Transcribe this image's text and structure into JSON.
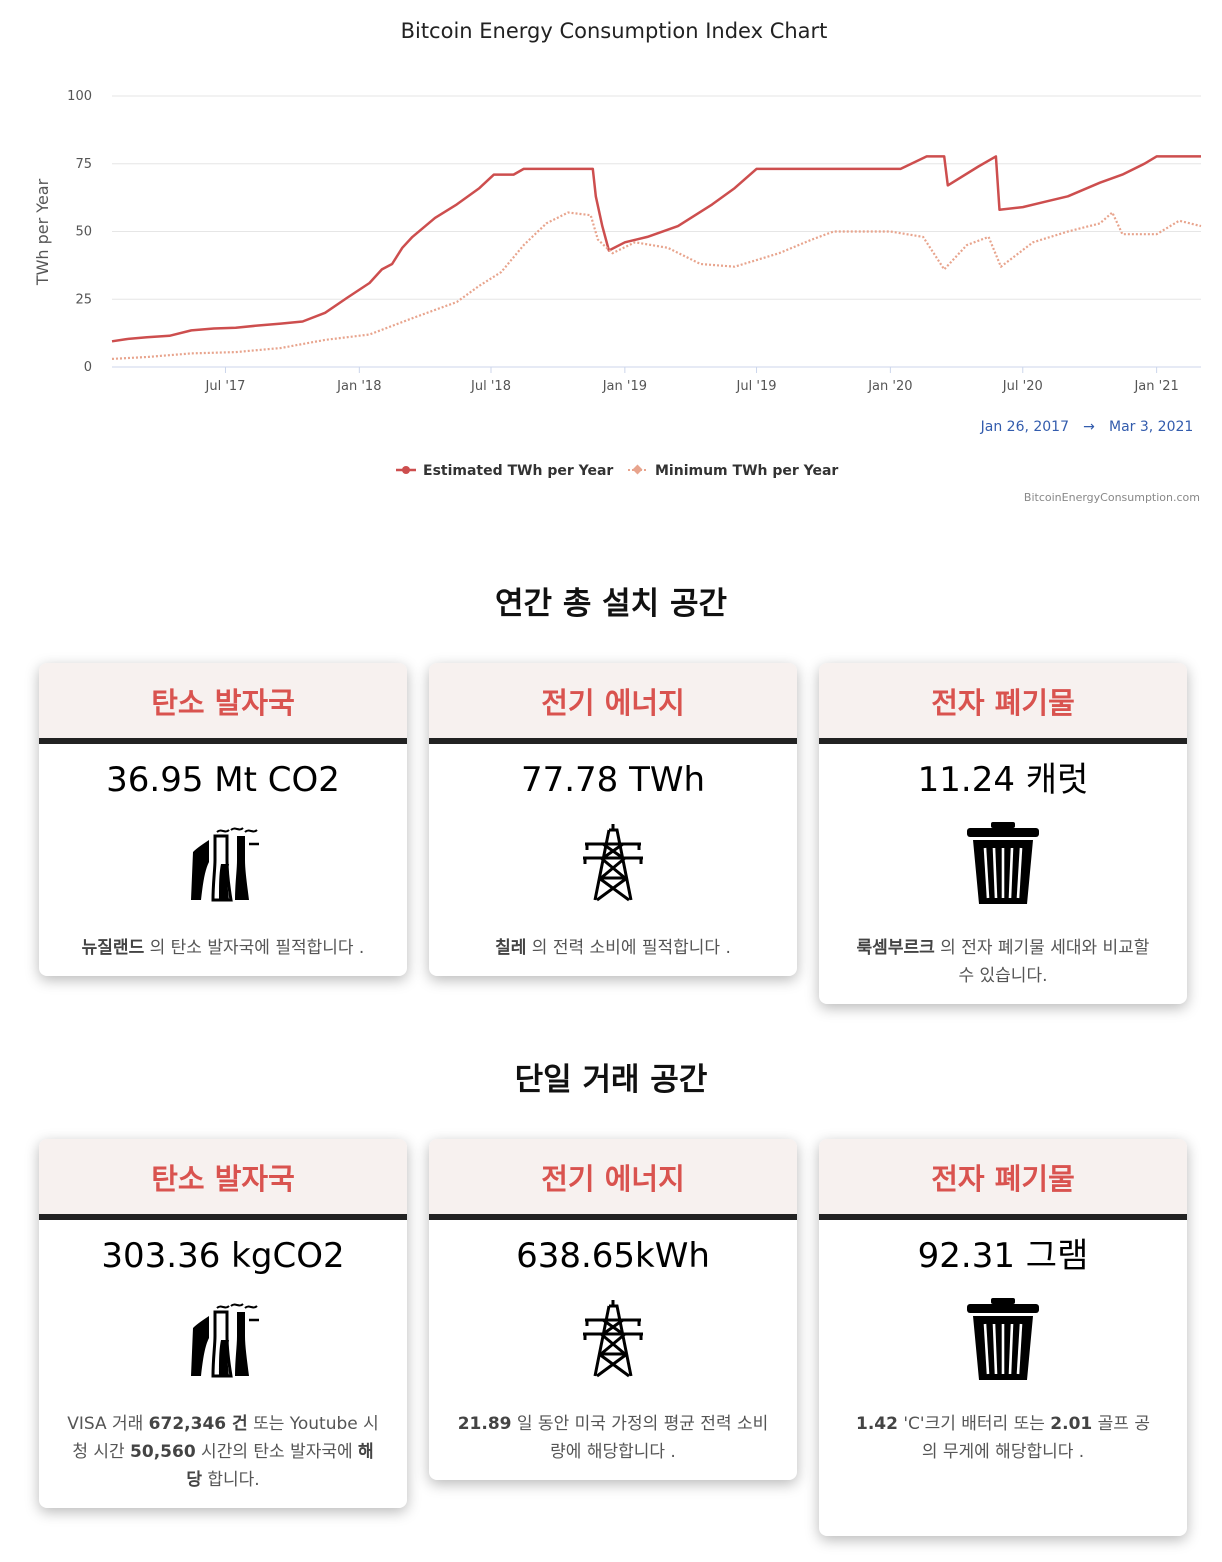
{
  "chart": {
    "title": "Bitcoin Energy Consumption Index Chart",
    "y_axis_title": "TWh per Year",
    "y_ticks": [
      "0",
      "25",
      "50",
      "75",
      "100"
    ],
    "x_ticks": [
      "Jul '17",
      "Jan '18",
      "Jul '18",
      "Jan '19",
      "Jul '19",
      "Jan '20",
      "Jul '20",
      "Jan '21"
    ],
    "range_from": "Jan 26, 2017",
    "range_arrow": "→",
    "range_to": "Mar 3, 2021",
    "legend": [
      "Estimated TWh per Year",
      "Minimum TWh per Year"
    ],
    "credit": "BitcoinEnergyConsumption.com",
    "colors": {
      "estimated": "#cd4e4e",
      "minimum": "#e8a48d",
      "grid": "#e6e6e6",
      "axis": "#ccd6eb"
    }
  },
  "chart_data": {
    "type": "line",
    "title": "Bitcoin Energy Consumption Index Chart",
    "xlabel": "",
    "ylabel": "TWh per Year",
    "ylim": [
      0,
      100
    ],
    "x_range": [
      "2017-01-26",
      "2021-03-03"
    ],
    "legend_position": "bottom",
    "grid": true,
    "series": [
      {
        "name": "Estimated TWh per Year",
        "points": [
          [
            "2017-01-26",
            9.5
          ],
          [
            "2017-02-15",
            10.3
          ],
          [
            "2017-03-15",
            11
          ],
          [
            "2017-04-15",
            11.5
          ],
          [
            "2017-05-15",
            13.5
          ],
          [
            "2017-06-15",
            14.2
          ],
          [
            "2017-07-15",
            14.5
          ],
          [
            "2017-08-15",
            15.3
          ],
          [
            "2017-09-15",
            16
          ],
          [
            "2017-10-15",
            16.8
          ],
          [
            "2017-11-15",
            20
          ],
          [
            "2017-12-15",
            25.5
          ],
          [
            "2018-01-15",
            31
          ],
          [
            "2018-02-01",
            36
          ],
          [
            "2018-02-15",
            38
          ],
          [
            "2018-03-01",
            44
          ],
          [
            "2018-03-15",
            48
          ],
          [
            "2018-04-15",
            55
          ],
          [
            "2018-05-15",
            60
          ],
          [
            "2018-06-15",
            66
          ],
          [
            "2018-07-05",
            71
          ],
          [
            "2018-08-01",
            71
          ],
          [
            "2018-08-15",
            73.1
          ],
          [
            "2018-11-18",
            73.1
          ],
          [
            "2018-11-22",
            63
          ],
          [
            "2018-12-01",
            52
          ],
          [
            "2018-12-10",
            43
          ],
          [
            "2019-01-01",
            46
          ],
          [
            "2019-02-01",
            48
          ],
          [
            "2019-03-15",
            52
          ],
          [
            "2019-05-01",
            60
          ],
          [
            "2019-06-01",
            66
          ],
          [
            "2019-07-01",
            73.1
          ],
          [
            "2020-01-15",
            73.1
          ],
          [
            "2020-02-20",
            77.7
          ],
          [
            "2020-03-15",
            77.7
          ],
          [
            "2020-03-20",
            67
          ],
          [
            "2020-05-01",
            74
          ],
          [
            "2020-05-25",
            77.7
          ],
          [
            "2020-05-30",
            58
          ],
          [
            "2020-07-01",
            59
          ],
          [
            "2020-08-01",
            61
          ],
          [
            "2020-09-01",
            63
          ],
          [
            "2020-10-15",
            68
          ],
          [
            "2020-11-15",
            71
          ],
          [
            "2020-12-15",
            75
          ],
          [
            "2021-01-01",
            77.7
          ],
          [
            "2021-03-03",
            77.7
          ]
        ]
      },
      {
        "name": "Minimum TWh per Year",
        "points": [
          [
            "2017-01-26",
            3
          ],
          [
            "2017-03-15",
            3.7
          ],
          [
            "2017-05-15",
            5
          ],
          [
            "2017-07-15",
            5.5
          ],
          [
            "2017-09-15",
            7
          ],
          [
            "2017-11-15",
            10
          ],
          [
            "2018-01-15",
            12
          ],
          [
            "2018-03-15",
            18
          ],
          [
            "2018-05-15",
            24
          ],
          [
            "2018-06-15",
            30
          ],
          [
            "2018-07-15",
            35
          ],
          [
            "2018-08-15",
            45
          ],
          [
            "2018-09-15",
            53
          ],
          [
            "2018-10-15",
            57
          ],
          [
            "2018-11-15",
            56
          ],
          [
            "2018-11-25",
            47
          ],
          [
            "2018-12-15",
            42
          ],
          [
            "2019-01-15",
            46
          ],
          [
            "2019-03-01",
            44
          ],
          [
            "2019-04-15",
            38
          ],
          [
            "2019-06-01",
            37
          ],
          [
            "2019-08-01",
            42
          ],
          [
            "2019-09-15",
            47
          ],
          [
            "2019-10-15",
            50
          ],
          [
            "2019-11-15",
            50
          ],
          [
            "2020-01-01",
            50
          ],
          [
            "2020-02-15",
            48
          ],
          [
            "2020-03-15",
            36
          ],
          [
            "2020-04-15",
            45
          ],
          [
            "2020-05-15",
            48
          ],
          [
            "2020-06-01",
            37
          ],
          [
            "2020-07-15",
            46
          ],
          [
            "2020-09-01",
            50
          ],
          [
            "2020-10-15",
            53
          ],
          [
            "2020-11-01",
            57
          ],
          [
            "2020-11-15",
            49
          ],
          [
            "2021-01-01",
            49
          ],
          [
            "2021-02-01",
            54
          ],
          [
            "2021-03-03",
            52
          ]
        ]
      }
    ]
  },
  "sections": [
    {
      "title": "연간 총 설치 공간",
      "cards": [
        {
          "heading": "탄소 발자국",
          "value": "36.95 Mt CO2",
          "icon": "power-plant-icon",
          "text": [
            {
              "t": "뉴질랜드",
              "b": true
            },
            {
              "t": " 의 탄소 발자국에 필적합니다 .",
              "b": false
            }
          ]
        },
        {
          "heading": "전기 에너지",
          "value": "77.78 TWh",
          "icon": "power-tower-icon",
          "text": [
            {
              "t": "칠레",
              "b": true
            },
            {
              "t": " 의 전력 소비에 필적합니다 .",
              "b": false
            }
          ]
        },
        {
          "heading": "전자 폐기물",
          "value": "11.24 캐럿",
          "icon": "trash-can-icon",
          "text": [
            {
              "t": "룩셈부르크",
              "b": true
            },
            {
              "t": " 의 전자 폐기물 세대와 비교할 수 있습니다.",
              "b": false
            }
          ]
        }
      ]
    },
    {
      "title": "단일 거래 공간",
      "cards": [
        {
          "heading": "탄소 발자국",
          "value": "303.36 kgCO2",
          "icon": "power-plant-icon",
          "text": [
            {
              "t": "VISA 거래 ",
              "b": false
            },
            {
              "t": "672,346 건",
              "b": true
            },
            {
              "t": " 또는 Youtube 시청 시간 ",
              "b": false
            },
            {
              "t": "50,560",
              "b": true
            },
            {
              "t": " 시간의 탄소 발자국에 ",
              "b": false
            },
            {
              "t": "해당",
              "b": true
            },
            {
              "t": " 합니다.",
              "b": false
            }
          ]
        },
        {
          "heading": "전기 에너지",
          "value": "638.65kWh",
          "icon": "power-tower-icon",
          "text": [
            {
              "t": "21.89",
              "b": true
            },
            {
              "t": " 일 동안 미국 가정의 평균 전력 소비량에 해당합니다 .",
              "b": false
            }
          ]
        },
        {
          "heading": "전자 폐기물",
          "value": "92.31 그램",
          "icon": "trash-can-icon",
          "text": [
            {
              "t": "1.42",
              "b": true
            },
            {
              "t": " 'C'크기 배터리 또는 ",
              "b": false
            },
            {
              "t": "2.01",
              "b": true
            },
            {
              "t": " 골프 공 의 무게에 해당합니다 .",
              "b": false
            }
          ]
        }
      ]
    }
  ]
}
